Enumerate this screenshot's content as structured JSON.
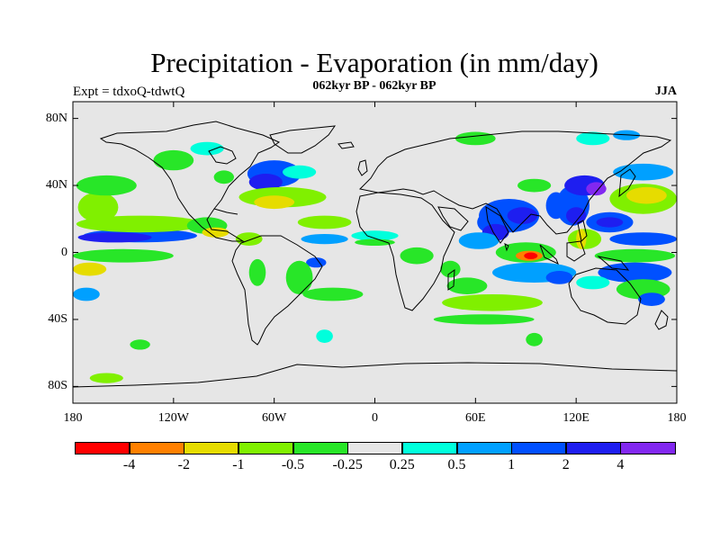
{
  "title": "Precipitation - Evaporation (in mm/day)",
  "subtitle": "062kyr BP - 062kyr BP",
  "left_label": "Expt = tdxoQ-tdwtQ",
  "right_label": "JJA",
  "colors": {
    "background": "#e6e6e6",
    "coast": "#000000"
  },
  "lat_ticks": [
    {
      "value": 80,
      "label": "80N"
    },
    {
      "value": 40,
      "label": "40N"
    },
    {
      "value": 0,
      "label": "0"
    },
    {
      "value": -40,
      "label": "40S"
    },
    {
      "value": -80,
      "label": "80S"
    }
  ],
  "lon_ticks": [
    {
      "value": -180,
      "label": "180"
    },
    {
      "value": -120,
      "label": "120W"
    },
    {
      "value": -60,
      "label": "60W"
    },
    {
      "value": 0,
      "label": "0"
    },
    {
      "value": 60,
      "label": "60E"
    },
    {
      "value": 120,
      "label": "120E"
    },
    {
      "value": 180,
      "label": "180"
    }
  ],
  "colorbar": {
    "colors": [
      "#ff0000",
      "#ff8000",
      "#e6dc00",
      "#80f000",
      "#28e628",
      "#e6e6e6",
      "#00ffdc",
      "#00a0ff",
      "#0050ff",
      "#1e1ef0",
      "#8228f0"
    ],
    "labels": [
      "-4",
      "-2",
      "-1",
      "-0.5",
      "-0.25",
      "0.25",
      "0.5",
      "1",
      "2",
      "4"
    ]
  },
  "fields": [
    {
      "lon": -140,
      "lat": 10,
      "rx": 34,
      "ry": 4,
      "level": 8
    },
    {
      "lon": -155,
      "lat": 9,
      "rx": 22,
      "ry": 3,
      "level": 9
    },
    {
      "lon": -140,
      "lat": 17,
      "rx": 38,
      "ry": 5,
      "level": 3
    },
    {
      "lon": -150,
      "lat": -2,
      "rx": 30,
      "ry": 4,
      "level": 4
    },
    {
      "lon": -165,
      "lat": 27,
      "rx": 12,
      "ry": 9,
      "level": 3
    },
    {
      "lon": -170,
      "lat": -10,
      "rx": 10,
      "ry": 4,
      "level": 2
    },
    {
      "lon": -160,
      "lat": 40,
      "rx": 18,
      "ry": 6,
      "level": 4
    },
    {
      "lon": -172,
      "lat": -25,
      "rx": 8,
      "ry": 4,
      "level": 7
    },
    {
      "lon": -100,
      "lat": 16,
      "rx": 12,
      "ry": 5,
      "level": 4
    },
    {
      "lon": -95,
      "lat": 12,
      "rx": 8,
      "ry": 3,
      "level": 2
    },
    {
      "lon": -75,
      "lat": 8,
      "rx": 8,
      "ry": 4,
      "level": 3
    },
    {
      "lon": -60,
      "lat": 47,
      "rx": 16,
      "ry": 8,
      "level": 8
    },
    {
      "lon": -65,
      "lat": 42,
      "rx": 10,
      "ry": 5,
      "level": 9
    },
    {
      "lon": -45,
      "lat": 48,
      "rx": 10,
      "ry": 4,
      "level": 6
    },
    {
      "lon": -55,
      "lat": 33,
      "rx": 26,
      "ry": 6,
      "level": 3
    },
    {
      "lon": -60,
      "lat": 30,
      "rx": 12,
      "ry": 4,
      "level": 2
    },
    {
      "lon": -30,
      "lat": 18,
      "rx": 16,
      "ry": 4,
      "level": 3
    },
    {
      "lon": -30,
      "lat": 8,
      "rx": 14,
      "ry": 3,
      "level": 7
    },
    {
      "lon": -35,
      "lat": -6,
      "rx": 6,
      "ry": 3,
      "level": 8
    },
    {
      "lon": -45,
      "lat": -15,
      "rx": 8,
      "ry": 10,
      "level": 4
    },
    {
      "lon": -25,
      "lat": -25,
      "rx": 18,
      "ry": 4,
      "level": 4
    },
    {
      "lon": -120,
      "lat": 55,
      "rx": 12,
      "ry": 6,
      "level": 4
    },
    {
      "lon": -100,
      "lat": 62,
      "rx": 10,
      "ry": 4,
      "level": 6
    },
    {
      "lon": -90,
      "lat": 45,
      "rx": 6,
      "ry": 4,
      "level": 4
    },
    {
      "lon": -70,
      "lat": -12,
      "rx": 5,
      "ry": 8,
      "level": 4
    },
    {
      "lon": 0,
      "lat": 10,
      "rx": 14,
      "ry": 3,
      "level": 6
    },
    {
      "lon": 0,
      "lat": 6,
      "rx": 12,
      "ry": 2,
      "level": 4
    },
    {
      "lon": 25,
      "lat": -2,
      "rx": 10,
      "ry": 5,
      "level": 4
    },
    {
      "lon": 45,
      "lat": -10,
      "rx": 6,
      "ry": 5,
      "level": 4
    },
    {
      "lon": 70,
      "lat": -30,
      "rx": 30,
      "ry": 5,
      "level": 3
    },
    {
      "lon": 55,
      "lat": -20,
      "rx": 12,
      "ry": 5,
      "level": 4
    },
    {
      "lon": 65,
      "lat": -40,
      "rx": 30,
      "ry": 3,
      "level": 4
    },
    {
      "lon": 80,
      "lat": 22,
      "rx": 18,
      "ry": 10,
      "level": 8
    },
    {
      "lon": 88,
      "lat": 22,
      "rx": 9,
      "ry": 5,
      "level": 9
    },
    {
      "lon": 68,
      "lat": 18,
      "rx": 7,
      "ry": 6,
      "level": 8
    },
    {
      "lon": 72,
      "lat": 12,
      "rx": 8,
      "ry": 5,
      "level": 9
    },
    {
      "lon": 62,
      "lat": 7,
      "rx": 12,
      "ry": 5,
      "level": 7
    },
    {
      "lon": 90,
      "lat": 0,
      "rx": 18,
      "ry": 6,
      "level": 4
    },
    {
      "lon": 92,
      "lat": -2,
      "rx": 8,
      "ry": 3,
      "level": 1
    },
    {
      "lon": 93,
      "lat": -2,
      "rx": 4,
      "ry": 2,
      "level": 0
    },
    {
      "lon": 95,
      "lat": -12,
      "rx": 25,
      "ry": 6,
      "level": 7
    },
    {
      "lon": 110,
      "lat": -15,
      "rx": 8,
      "ry": 4,
      "level": 8
    },
    {
      "lon": 95,
      "lat": 40,
      "rx": 10,
      "ry": 4,
      "level": 4
    },
    {
      "lon": 108,
      "lat": 28,
      "rx": 6,
      "ry": 8,
      "level": 8
    },
    {
      "lon": 118,
      "lat": 28,
      "rx": 10,
      "ry": 12,
      "level": 8
    },
    {
      "lon": 120,
      "lat": 22,
      "rx": 6,
      "ry": 5,
      "level": 9
    },
    {
      "lon": 125,
      "lat": 40,
      "rx": 12,
      "ry": 6,
      "level": 9
    },
    {
      "lon": 132,
      "lat": 38,
      "rx": 6,
      "ry": 4,
      "level": 10
    },
    {
      "lon": 140,
      "lat": 18,
      "rx": 14,
      "ry": 6,
      "level": 8
    },
    {
      "lon": 140,
      "lat": 18,
      "rx": 8,
      "ry": 3,
      "level": 9
    },
    {
      "lon": 125,
      "lat": 8,
      "rx": 10,
      "ry": 6,
      "level": 3
    },
    {
      "lon": 123,
      "lat": 8,
      "rx": 3,
      "ry": 6,
      "level": 2
    },
    {
      "lon": 160,
      "lat": 32,
      "rx": 20,
      "ry": 9,
      "level": 3
    },
    {
      "lon": 162,
      "lat": 34,
      "rx": 12,
      "ry": 5,
      "level": 2
    },
    {
      "lon": 160,
      "lat": 48,
      "rx": 18,
      "ry": 5,
      "level": 7
    },
    {
      "lon": 160,
      "lat": 8,
      "rx": 20,
      "ry": 4,
      "level": 8
    },
    {
      "lon": 155,
      "lat": -2,
      "rx": 24,
      "ry": 4,
      "level": 4
    },
    {
      "lon": 155,
      "lat": -12,
      "rx": 22,
      "ry": 6,
      "level": 8
    },
    {
      "lon": 160,
      "lat": -22,
      "rx": 16,
      "ry": 6,
      "level": 4
    },
    {
      "lon": 165,
      "lat": -28,
      "rx": 8,
      "ry": 4,
      "level": 8
    },
    {
      "lon": 130,
      "lat": -18,
      "rx": 10,
      "ry": 4,
      "level": 6
    },
    {
      "lon": -140,
      "lat": -55,
      "rx": 6,
      "ry": 3,
      "level": 4
    },
    {
      "lon": -160,
      "lat": -75,
      "rx": 10,
      "ry": 3,
      "level": 3
    },
    {
      "lon": 130,
      "lat": 68,
      "rx": 10,
      "ry": 4,
      "level": 6
    },
    {
      "lon": 60,
      "lat": 68,
      "rx": 12,
      "ry": 4,
      "level": 4
    },
    {
      "lon": 150,
      "lat": 70,
      "rx": 8,
      "ry": 3,
      "level": 7
    },
    {
      "lon": -30,
      "lat": -50,
      "rx": 5,
      "ry": 4,
      "level": 6
    },
    {
      "lon": 95,
      "lat": -52,
      "rx": 5,
      "ry": 4,
      "level": 4
    }
  ]
}
